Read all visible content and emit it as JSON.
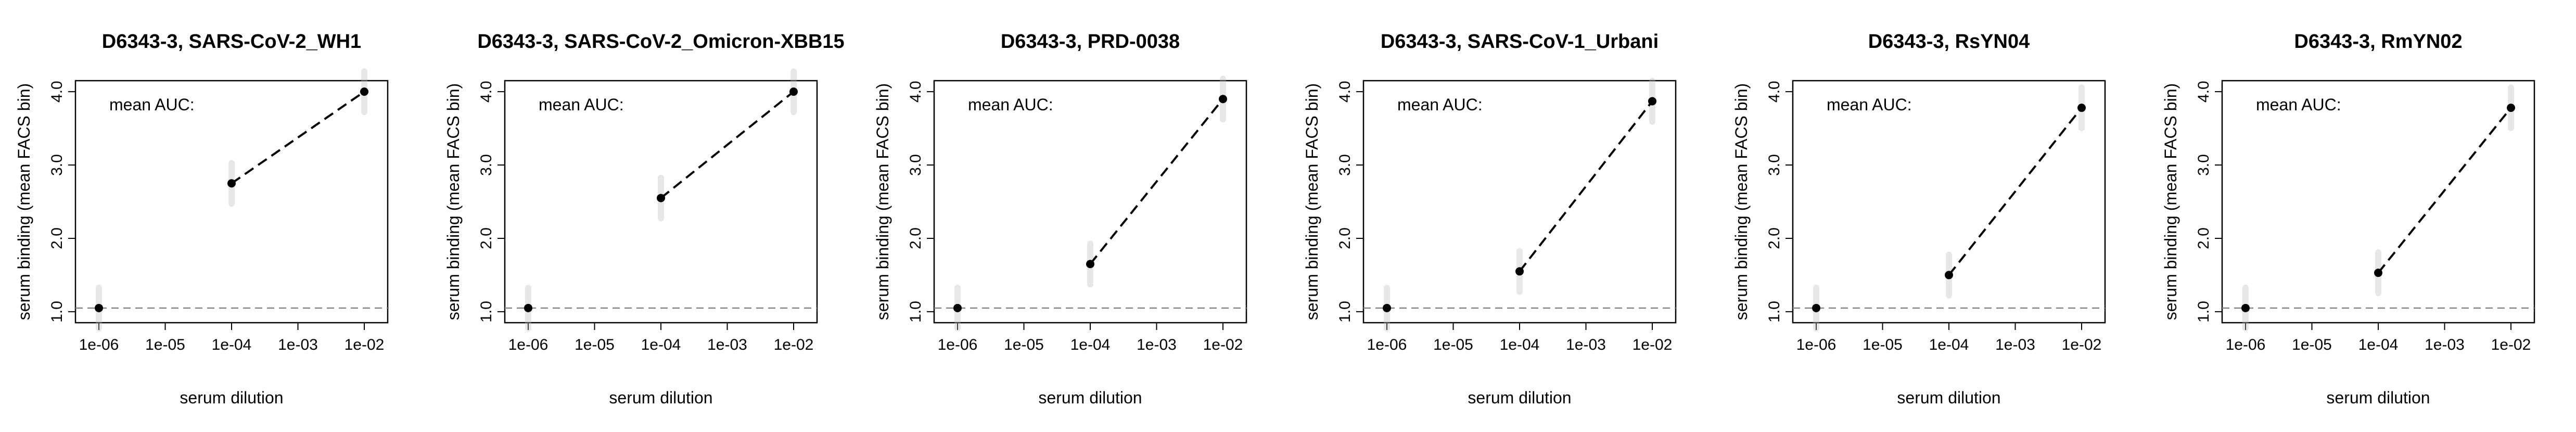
{
  "chart_data": [
    {
      "type": "line",
      "title": "D6343-3, SARS-CoV-2_WH1",
      "xlabel": "serum dilution",
      "ylabel": "serum binding (mean FACS bin)",
      "annotation": "mean AUC:",
      "x_scale": "log",
      "x": [
        1e-06,
        0.0001,
        0.01
      ],
      "y": [
        1.05,
        2.75,
        4.0
      ],
      "x_ticks": [
        "1e-06",
        "1e-05",
        "1e-04",
        "1e-03",
        "1e-02"
      ],
      "y_ticks": [
        "1.0",
        "2.0",
        "3.0",
        "4.0"
      ],
      "ylim": [
        0.85,
        4.15
      ],
      "baseline": 1.05,
      "grid": false
    },
    {
      "type": "line",
      "title": "D6343-3, SARS-CoV-2_Omicron-XBB15",
      "xlabel": "serum dilution",
      "ylabel": "serum binding (mean FACS bin)",
      "annotation": "mean AUC:",
      "x_scale": "log",
      "x": [
        1e-06,
        0.0001,
        0.01
      ],
      "y": [
        1.05,
        2.55,
        4.0
      ],
      "x_ticks": [
        "1e-06",
        "1e-05",
        "1e-04",
        "1e-03",
        "1e-02"
      ],
      "y_ticks": [
        "1.0",
        "2.0",
        "3.0",
        "4.0"
      ],
      "ylim": [
        0.85,
        4.15
      ],
      "baseline": 1.05,
      "grid": false
    },
    {
      "type": "line",
      "title": "D6343-3, PRD-0038",
      "xlabel": "serum dilution",
      "ylabel": "serum binding (mean FACS bin)",
      "annotation": "mean AUC:",
      "x_scale": "log",
      "x": [
        1e-06,
        0.0001,
        0.01
      ],
      "y": [
        1.05,
        1.65,
        3.9
      ],
      "x_ticks": [
        "1e-06",
        "1e-05",
        "1e-04",
        "1e-03",
        "1e-02"
      ],
      "y_ticks": [
        "1.0",
        "2.0",
        "3.0",
        "4.0"
      ],
      "ylim": [
        0.85,
        4.15
      ],
      "baseline": 1.05,
      "grid": false
    },
    {
      "type": "line",
      "title": "D6343-3, SARS-CoV-1_Urbani",
      "xlabel": "serum dilution",
      "ylabel": "serum binding (mean FACS bin)",
      "annotation": "mean AUC:",
      "x_scale": "log",
      "x": [
        1e-06,
        0.0001,
        0.01
      ],
      "y": [
        1.05,
        1.55,
        3.87
      ],
      "x_ticks": [
        "1e-06",
        "1e-05",
        "1e-04",
        "1e-03",
        "1e-02"
      ],
      "y_ticks": [
        "1.0",
        "2.0",
        "3.0",
        "4.0"
      ],
      "ylim": [
        0.85,
        4.15
      ],
      "baseline": 1.05,
      "grid": false
    },
    {
      "type": "line",
      "title": "D6343-3, RsYN04",
      "xlabel": "serum dilution",
      "ylabel": "serum binding (mean FACS bin)",
      "annotation": "mean AUC:",
      "x_scale": "log",
      "x": [
        1e-06,
        0.0001,
        0.01
      ],
      "y": [
        1.05,
        1.5,
        3.78
      ],
      "x_ticks": [
        "1e-06",
        "1e-05",
        "1e-04",
        "1e-03",
        "1e-02"
      ],
      "y_ticks": [
        "1.0",
        "2.0",
        "3.0",
        "4.0"
      ],
      "ylim": [
        0.85,
        4.15
      ],
      "baseline": 1.05,
      "grid": false
    },
    {
      "type": "line",
      "title": "D6343-3, RmYN02",
      "xlabel": "serum dilution",
      "ylabel": "serum binding (mean FACS bin)",
      "annotation": "mean AUC:",
      "x_scale": "log",
      "x": [
        1e-06,
        0.0001,
        0.01
      ],
      "y": [
        1.05,
        1.53,
        3.78
      ],
      "x_ticks": [
        "1e-06",
        "1e-05",
        "1e-04",
        "1e-03",
        "1e-02"
      ],
      "y_ticks": [
        "1.0",
        "2.0",
        "3.0",
        "4.0"
      ],
      "ylim": [
        0.85,
        4.15
      ],
      "baseline": 1.05,
      "grid": false
    }
  ],
  "colors": {
    "line": "#000000",
    "baseline": "#888888",
    "points": "#000000",
    "cloud": "#bbbbbb"
  }
}
